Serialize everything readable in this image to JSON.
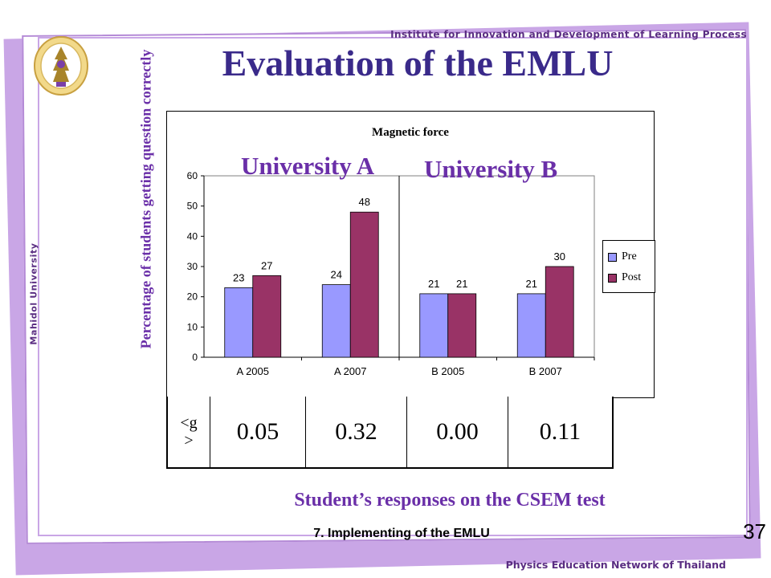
{
  "header": {
    "institute": "Institute for Innovation and Development of Learning Process",
    "university_side": "Mahidol University",
    "title": "Evaluation of the EMLU"
  },
  "colors": {
    "frame": "#c9a6e6",
    "pre": "#9999ff",
    "post": "#993366",
    "accent_text": "#6a2fa8"
  },
  "y_axis_label": "Percentage of students getting question correctly",
  "university_labels": [
    "University A",
    "University B"
  ],
  "chart_data": {
    "type": "bar",
    "title": "Magnetic force",
    "categories": [
      "A 2005",
      "A 2007",
      "B 2005",
      "B 2007"
    ],
    "series": [
      {
        "name": "Pre",
        "values": [
          23,
          24,
          21,
          21
        ]
      },
      {
        "name": "Post",
        "values": [
          27,
          48,
          21,
          30
        ]
      }
    ],
    "ylim": [
      0,
      60
    ],
    "yticks": [
      "0",
      "10",
      "20",
      "30",
      "40",
      "50",
      "60"
    ],
    "legend": "right",
    "grid": false
  },
  "g_table": {
    "label": "<g>",
    "values": [
      "0.05",
      "0.32",
      "0.00",
      "0.11"
    ]
  },
  "caption": "Student’s responses on the CSEM test",
  "footer": {
    "section": "7. Implementing of the EMLU",
    "page_number": "37",
    "network": "Physics Education Network of Thailand"
  }
}
